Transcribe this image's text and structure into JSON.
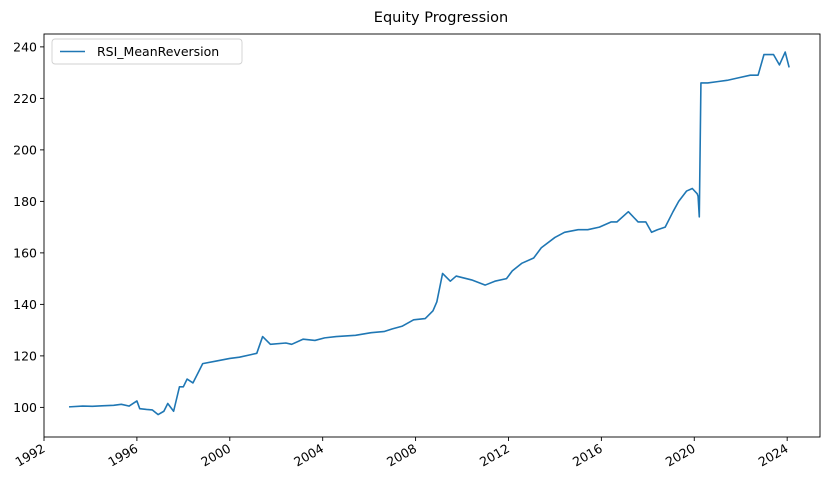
{
  "chart_data": {
    "type": "line",
    "title": "Equity Progression",
    "xlabel": "",
    "ylabel": "",
    "x_range": [
      "1992-01-01",
      "2025-06-01"
    ],
    "ylim": [
      88.5,
      245
    ],
    "x_ticks": [
      "1992",
      "1996",
      "2000",
      "2004",
      "2008",
      "2012",
      "2016",
      "2020",
      "2024"
    ],
    "y_ticks": [
      100,
      120,
      140,
      160,
      180,
      200,
      220,
      240
    ],
    "grid": false,
    "legend": {
      "position": "top-left"
    },
    "line_color": "#1f77b4",
    "series": [
      {
        "name": "RSI_MeanReversion",
        "x": [
          "1993-01-29",
          "1993-09-01",
          "1994-02-01",
          "1994-07-01",
          "1995-01-01",
          "1995-05-01",
          "1995-09-01",
          "1996-01-01",
          "1996-02-15",
          "1996-06-01",
          "1996-09-01",
          "1996-12-01",
          "1997-03-01",
          "1997-05-01",
          "1997-08-01",
          "1997-11-01",
          "1998-01-01",
          "1998-03-01",
          "1998-06-01",
          "1998-09-01",
          "1998-11-01",
          "1999-06-01",
          "2000-01-01",
          "2000-06-01",
          "2000-12-01",
          "2001-03-01",
          "2001-06-01",
          "2001-10-01",
          "2002-06-01",
          "2002-09-01",
          "2003-03-01",
          "2003-09-01",
          "2004-02-01",
          "2004-08-01",
          "2005-06-01",
          "2006-02-01",
          "2006-09-01",
          "2007-01-01",
          "2007-06-01",
          "2007-12-01",
          "2008-06-01",
          "2008-10-01",
          "2008-12-01",
          "2009-03-01",
          "2009-07-01",
          "2009-10-01",
          "2010-06-01",
          "2011-01-01",
          "2011-06-01",
          "2011-12-01",
          "2012-03-01",
          "2012-08-01",
          "2013-02-01",
          "2013-06-01",
          "2014-01-01",
          "2014-06-01",
          "2015-01-01",
          "2015-06-01",
          "2015-12-01",
          "2016-06-01",
          "2016-09-01",
          "2017-03-01",
          "2017-08-01",
          "2017-12-01",
          "2018-03-01",
          "2018-06-01",
          "2018-10-01",
          "2019-02-01",
          "2019-05-01",
          "2019-09-01",
          "2019-12-01",
          "2020-02-15",
          "2020-03-01",
          "2020-03-20",
          "2020-04-15",
          "2020-08-01",
          "2021-01-01",
          "2021-06-01",
          "2021-12-01",
          "2022-06-01",
          "2022-10-01",
          "2023-01-01",
          "2023-06-01",
          "2023-09-01",
          "2023-12-01",
          "2024-02-01"
        ],
        "values": [
          100.2,
          100.5,
          100.4,
          100.6,
          100.8,
          101.2,
          100.5,
          102.5,
          99.5,
          99.2,
          99.0,
          97.2,
          98.5,
          101.5,
          98.5,
          108.0,
          108.0,
          111.0,
          109.5,
          114.0,
          117.0,
          118.0,
          119.0,
          119.5,
          120.5,
          121.0,
          127.5,
          124.5,
          125.0,
          124.5,
          126.5,
          126.0,
          127.0,
          127.5,
          128.0,
          129.0,
          129.5,
          130.5,
          131.5,
          134.0,
          134.5,
          137.5,
          141.0,
          152.0,
          149.0,
          151.0,
          149.5,
          147.5,
          149.0,
          150.0,
          153.0,
          156.0,
          158.0,
          162.0,
          166.0,
          168.0,
          169.0,
          169.0,
          170.0,
          172.0,
          172.0,
          176.0,
          172.0,
          172.0,
          168.0,
          169.0,
          170.0,
          176.0,
          180.0,
          184.0,
          185.0,
          183.0,
          182.0,
          174.0,
          226.0,
          226.0,
          226.5,
          227.0,
          228.0,
          229.0,
          229.0,
          237.0,
          237.0,
          233.0,
          238.0,
          232.0
        ]
      }
    ]
  }
}
